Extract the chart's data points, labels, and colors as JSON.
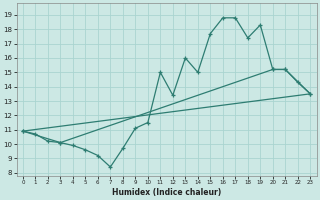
{
  "title": "",
  "xlabel": "Humidex (Indice chaleur)",
  "bg_color": "#cce8e4",
  "grid_color": "#aad4d0",
  "line_color": "#2e7d72",
  "xlim": [
    -0.5,
    23.5
  ],
  "ylim": [
    7.8,
    19.8
  ],
  "xticks": [
    0,
    1,
    2,
    3,
    4,
    5,
    6,
    7,
    8,
    9,
    10,
    11,
    12,
    13,
    14,
    15,
    16,
    17,
    18,
    19,
    20,
    21,
    22,
    23
  ],
  "yticks": [
    8,
    9,
    10,
    11,
    12,
    13,
    14,
    15,
    16,
    17,
    18,
    19
  ],
  "curve1_x": [
    0,
    1,
    2,
    3,
    4,
    5,
    6,
    7,
    8,
    9,
    10,
    11,
    12,
    13,
    14,
    15,
    16,
    17,
    18,
    19,
    20,
    21,
    22,
    23
  ],
  "curve1_y": [
    10.9,
    10.7,
    10.2,
    10.1,
    9.9,
    9.6,
    9.2,
    8.4,
    9.7,
    11.1,
    11.5,
    15.0,
    13.4,
    16.0,
    15.0,
    17.7,
    18.8,
    18.8,
    17.4,
    18.3,
    15.2,
    15.2,
    14.3,
    13.5
  ],
  "curve2_x": [
    0,
    3,
    20,
    21,
    23
  ],
  "curve2_y": [
    10.9,
    10.1,
    15.2,
    15.2,
    13.5
  ],
  "curve3_x": [
    0,
    23
  ],
  "curve3_y": [
    10.9,
    13.5
  ]
}
